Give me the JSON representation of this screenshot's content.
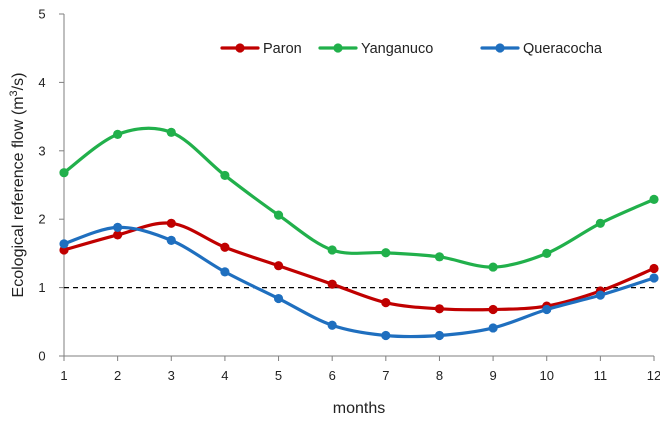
{
  "chart_data": {
    "type": "line",
    "categories": [
      1,
      2,
      3,
      4,
      5,
      6,
      7,
      8,
      9,
      10,
      11,
      12
    ],
    "xlabel": "months",
    "ylabel": "Ecological reference flow (m³/s)",
    "ylim": [
      0,
      5
    ],
    "yticks": [
      0,
      1,
      2,
      3,
      4,
      5
    ],
    "xticks": [
      1,
      2,
      3,
      4,
      5,
      6,
      7,
      8,
      9,
      10,
      11,
      12
    ],
    "grid": false,
    "legend_position": "top-right",
    "reference_line": {
      "y": 1,
      "style": "dashed",
      "color": "#000000"
    },
    "series": [
      {
        "name": "Paron",
        "color": "#c00000",
        "values": [
          1.55,
          1.77,
          1.94,
          1.59,
          1.32,
          1.05,
          0.78,
          0.69,
          0.68,
          0.73,
          0.95,
          1.28
        ]
      },
      {
        "name": "Yanganuco",
        "color": "#21b04b",
        "values": [
          2.68,
          3.24,
          3.27,
          2.64,
          2.06,
          1.55,
          1.51,
          1.45,
          1.3,
          1.5,
          1.94,
          2.29
        ]
      },
      {
        "name": "Queracocha",
        "color": "#1f6fbf",
        "values": [
          1.64,
          1.88,
          1.69,
          1.23,
          0.84,
          0.45,
          0.3,
          0.3,
          0.41,
          0.68,
          0.89,
          1.14
        ]
      }
    ]
  }
}
